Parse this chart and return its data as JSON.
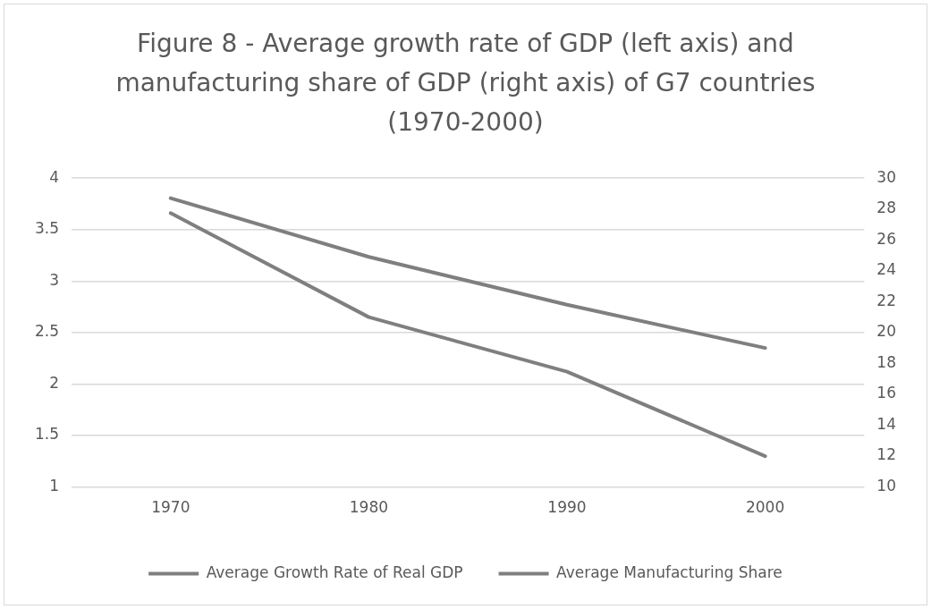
{
  "chart_data": {
    "type": "line",
    "title": "Figure 8 - Average growth rate of GDP (left axis) and manufacturing share of GDP (right axis) of G7 countries (1970-2000)",
    "categories": [
      "1970",
      "1980",
      "1990",
      "2000"
    ],
    "series": [
      {
        "name": "Average Growth Rate of Real GDP",
        "color": "#7f7f7f",
        "values": [
          3.66,
          2.65,
          2.12,
          1.3
        ]
      },
      {
        "name": "Average Manufacturing Share",
        "color": "#7f7f7f",
        "values": [
          28.7,
          24.9,
          21.8,
          19.0
        ],
        "axis": "y2"
      }
    ],
    "ylim": [
      1,
      4
    ],
    "yticks": [
      1,
      1.5,
      2,
      2.5,
      3,
      3.5,
      4
    ],
    "y2lim": [
      10,
      30
    ],
    "y2ticks": [
      10,
      12,
      14,
      16,
      18,
      20,
      22,
      24,
      26,
      28,
      30
    ],
    "grid": "y",
    "legend": "bottom",
    "marker": "none",
    "line_style": "solid"
  }
}
